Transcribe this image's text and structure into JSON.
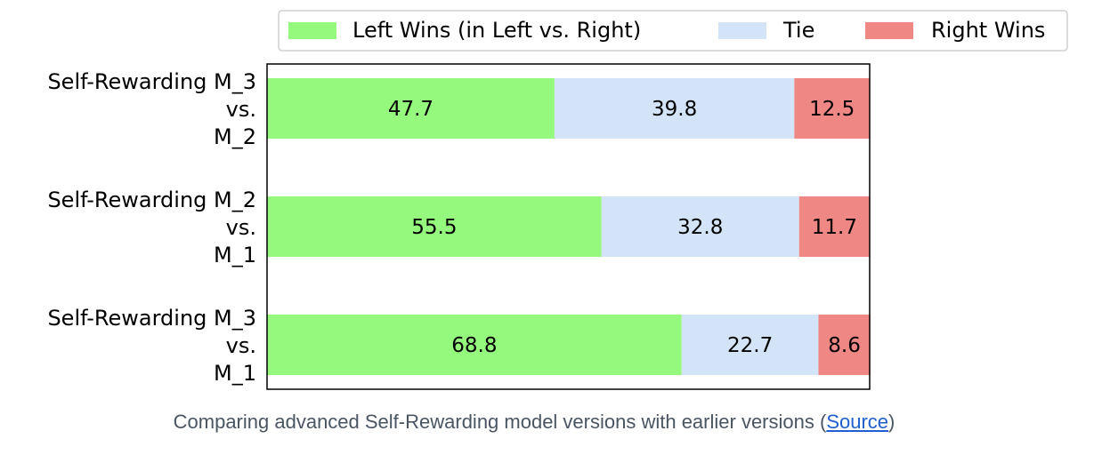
{
  "chart_data": {
    "type": "bar",
    "orientation": "horizontal",
    "stacked": true,
    "categories": [
      [
        "Self-Rewarding M_3",
        "vs.",
        "M_2"
      ],
      [
        "Self-Rewarding M_2",
        "vs.",
        "M_1"
      ],
      [
        "Self-Rewarding M_3",
        "vs.",
        "M_1"
      ]
    ],
    "series": [
      {
        "name": "Left Wins (in Left vs. Right)",
        "color": "#95f97e",
        "values": [
          47.7,
          55.5,
          68.8
        ]
      },
      {
        "name": "Tie",
        "color": "#d3e4f9",
        "values": [
          39.8,
          32.8,
          22.7
        ]
      },
      {
        "name": "Right Wins",
        "color": "#ef8884",
        "values": [
          12.5,
          11.7,
          8.6
        ]
      }
    ],
    "xlim": [
      0,
      100
    ],
    "grid": false,
    "legend_position": "top-right"
  },
  "caption": {
    "text_before": "Comparing advanced Self-Rewarding model versions with earlier versions (",
    "link_text": "Source",
    "text_after": ")"
  }
}
